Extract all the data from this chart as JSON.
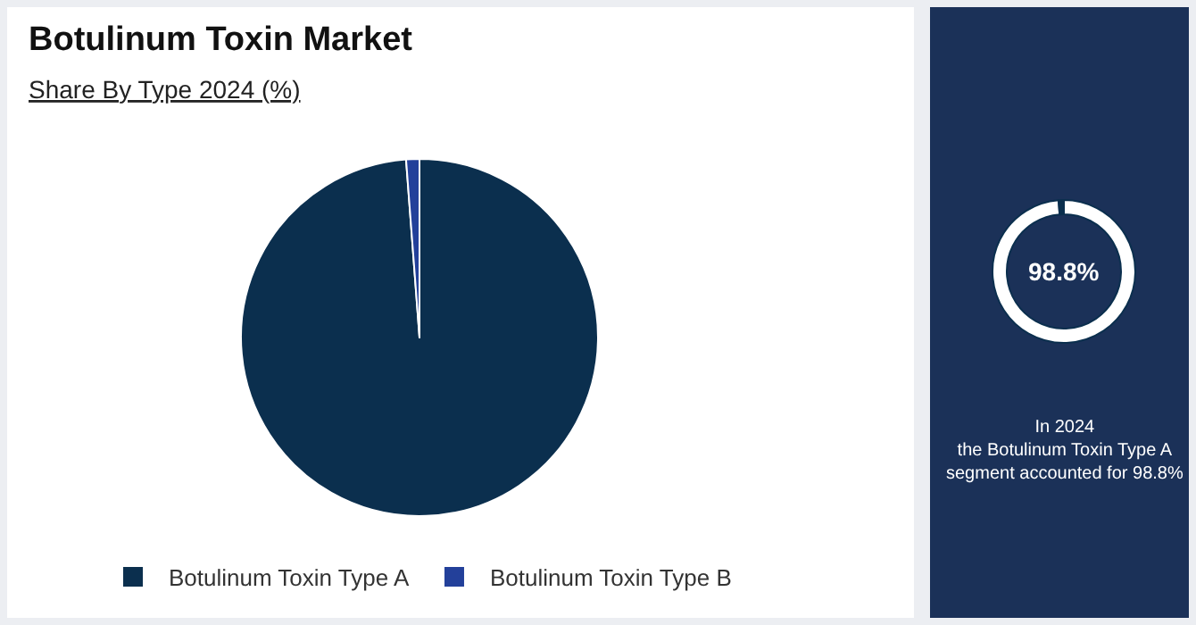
{
  "chart_data": [
    {
      "type": "pie",
      "title": "Botulinum Toxin Market",
      "subtitle": "Share By Type 2024 (%)",
      "categories": [
        "Botulinum Toxin Type A",
        "Botulinum Toxin Type B"
      ],
      "values": [
        98.8,
        1.2
      ],
      "colors": [
        "#0b2f4e",
        "#23409a"
      ],
      "legend": "bottom"
    },
    {
      "type": "donut",
      "categories": [
        null,
        null
      ],
      "values": [
        98.8,
        1.2
      ],
      "colors": [
        "#ffffff",
        "#0b2f4e"
      ],
      "annotations": [
        "98.8%",
        "In 2024\nthe Botulinum Toxin Type A\nsegment accounted for 98.8%"
      ]
    }
  ]
}
